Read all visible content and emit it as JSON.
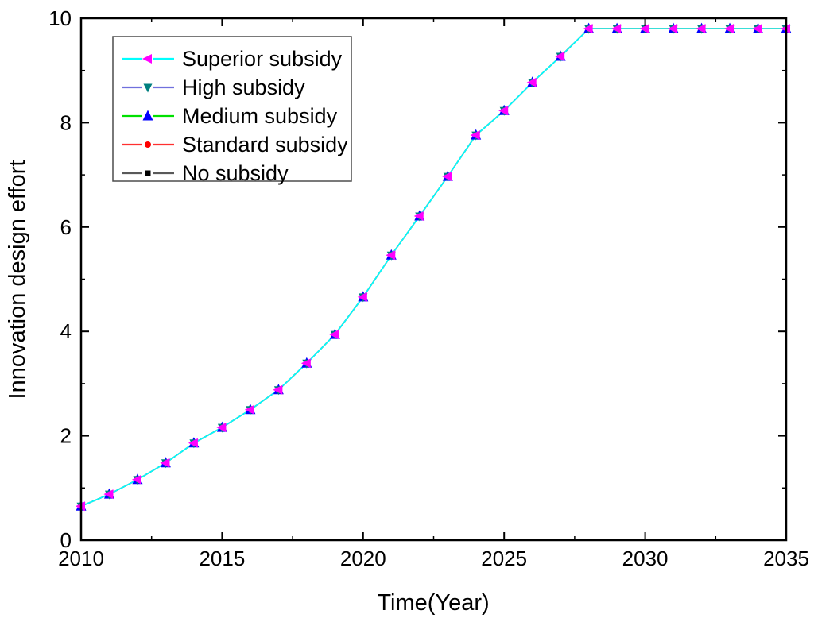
{
  "chart_data": {
    "type": "line",
    "title": "",
    "xlabel": "Time(Year)",
    "ylabel": "Innovation design effort",
    "xlim": [
      2010,
      2035
    ],
    "ylim": [
      0,
      10
    ],
    "x_ticks": [
      2010,
      2015,
      2020,
      2025,
      2030,
      2035
    ],
    "x_minor_ticks": [
      2012.5,
      2017.5,
      2022.5,
      2027.5,
      2032.5
    ],
    "y_ticks": [
      0,
      2,
      4,
      6,
      8,
      10
    ],
    "y_minor_ticks": [
      1,
      3,
      5,
      7,
      9
    ],
    "grid": false,
    "legend_position": "top-left",
    "legend_border_color": "#4d4d4d",
    "frame_color": "#000000",
    "x": [
      2010,
      2011,
      2012,
      2013,
      2014,
      2015,
      2016,
      2017,
      2018,
      2019,
      2020,
      2021,
      2022,
      2023,
      2024,
      2025,
      2026,
      2027,
      2028,
      2029,
      2030,
      2031,
      2032,
      2033,
      2034,
      2035
    ],
    "series": [
      {
        "name": "Superior subsidy",
        "line_color": "#00ffff",
        "marker": "triangle-left",
        "marker_color": "#ff00ff",
        "values": [
          0.65,
          0.88,
          1.16,
          1.48,
          1.86,
          2.16,
          2.5,
          2.88,
          3.39,
          3.94,
          4.66,
          5.46,
          6.21,
          6.97,
          7.76,
          8.23,
          8.77,
          9.27,
          9.8,
          9.8,
          9.8,
          9.8,
          9.8,
          9.8,
          9.8,
          9.8
        ]
      },
      {
        "name": "High subsidy",
        "line_color": "#7070dd",
        "marker": "triangle-down",
        "marker_color": "#007f7f",
        "values": [
          0.65,
          0.88,
          1.16,
          1.48,
          1.86,
          2.16,
          2.5,
          2.88,
          3.39,
          3.94,
          4.66,
          5.46,
          6.21,
          6.97,
          7.76,
          8.23,
          8.77,
          9.27,
          9.8,
          9.8,
          9.8,
          9.8,
          9.8,
          9.8,
          9.8,
          9.8
        ]
      },
      {
        "name": "Medium subsidy",
        "line_color": "#00e000",
        "marker": "triangle-up",
        "marker_color": "#0000ff",
        "values": [
          0.65,
          0.88,
          1.16,
          1.48,
          1.86,
          2.16,
          2.5,
          2.88,
          3.39,
          3.94,
          4.66,
          5.46,
          6.21,
          6.97,
          7.76,
          8.23,
          8.77,
          9.27,
          9.8,
          9.8,
          9.8,
          9.8,
          9.8,
          9.8,
          9.8,
          9.8
        ]
      },
      {
        "name": "Standard subsidy",
        "line_color": "#ff3030",
        "marker": "circle",
        "marker_color": "#ff0000",
        "values": [
          0.65,
          0.88,
          1.16,
          1.48,
          1.86,
          2.16,
          2.5,
          2.88,
          3.39,
          3.94,
          4.66,
          5.46,
          6.21,
          6.97,
          7.76,
          8.23,
          8.77,
          9.27,
          9.8,
          9.8,
          9.8,
          9.8,
          9.8,
          9.8,
          9.8,
          9.8
        ]
      },
      {
        "name": "No subsidy",
        "line_color": "#595959",
        "marker": "square",
        "marker_color": "#000000",
        "values": [
          0.65,
          0.88,
          1.16,
          1.48,
          1.86,
          2.16,
          2.5,
          2.88,
          3.39,
          3.94,
          4.66,
          5.46,
          6.21,
          6.97,
          7.76,
          8.23,
          8.77,
          9.27,
          9.8,
          9.8,
          9.8,
          9.8,
          9.8,
          9.8,
          9.8,
          9.8
        ]
      }
    ]
  }
}
